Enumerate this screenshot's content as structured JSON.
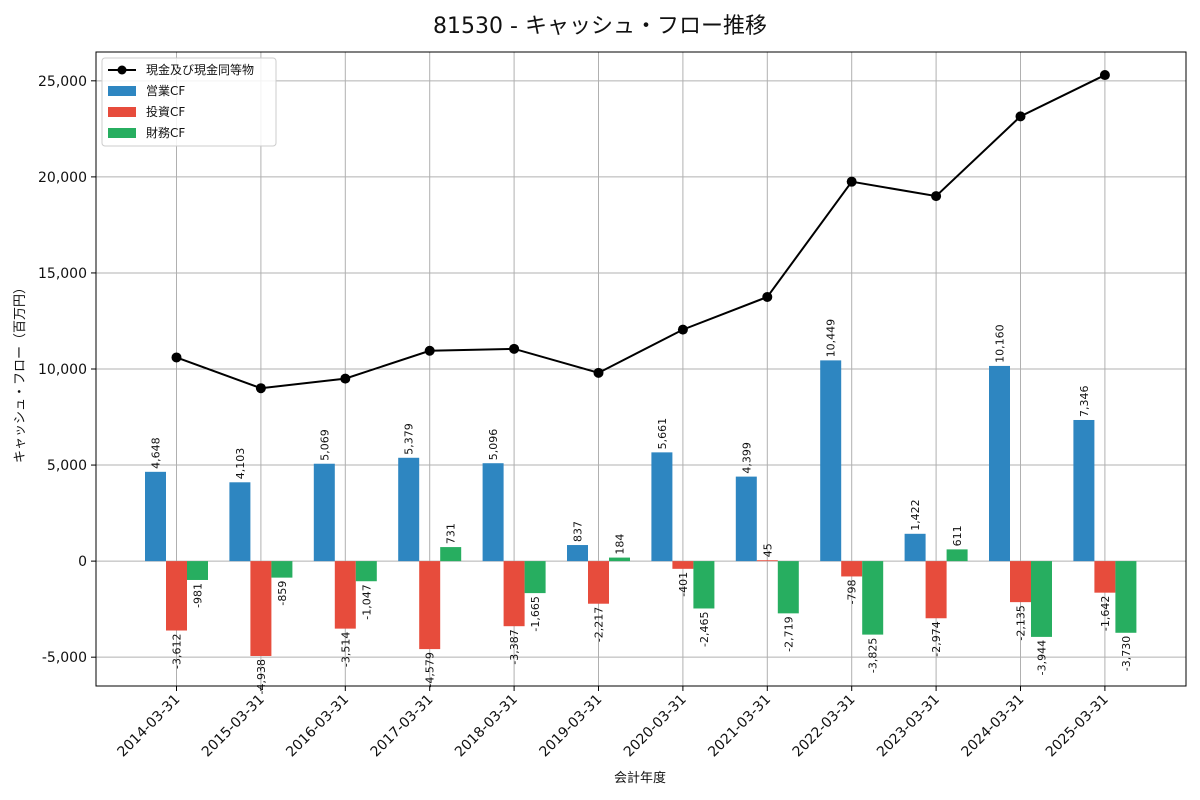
{
  "chart_data": {
    "type": "bar",
    "title": "81530 - キャッシュ・フロー推移",
    "xlabel": "会計年度",
    "ylabel": "キャッシュ・フロー（百万円）",
    "ylim": [
      -6500,
      26500
    ],
    "yticks": [
      -5000,
      0,
      5000,
      10000,
      15000,
      20000,
      25000
    ],
    "ytick_labels": [
      "-5,000",
      "0",
      "5,000",
      "10,000",
      "15,000",
      "20,000",
      "25,000"
    ],
    "grid": true,
    "legend_position": "top-left",
    "categories": [
      "2014-03-31",
      "2015-03-31",
      "2016-03-31",
      "2017-03-31",
      "2018-03-31",
      "2019-03-31",
      "2020-03-31",
      "2021-03-31",
      "2022-03-31",
      "2023-03-31",
      "2024-03-31",
      "2025-03-31"
    ],
    "series": [
      {
        "name": "営業CF",
        "kind": "bar",
        "color": "#2e86c1",
        "values": [
          4648,
          4103,
          5069,
          5379,
          5096,
          837,
          5661,
          4399,
          10449,
          1422,
          10160,
          7346
        ],
        "labels": [
          "4,648",
          "4,103",
          "5,069",
          "5,379",
          "5,096",
          "837",
          "5,661",
          "4,399",
          "10,449",
          "1,422",
          "10,160",
          "7,346"
        ]
      },
      {
        "name": "投資CF",
        "kind": "bar",
        "color": "#e74c3c",
        "values": [
          -3612,
          -4938,
          -3514,
          -4579,
          -3387,
          -2217,
          -401,
          45,
          -798,
          -2974,
          -2135,
          -1642
        ],
        "labels": [
          "-3,612",
          "-4,938",
          "-3,514",
          "-4,579",
          "-3,387",
          "-2,217",
          "-401",
          "45",
          "-798",
          "-2,974",
          "-2,135",
          "-1,642"
        ]
      },
      {
        "name": "財務CF",
        "kind": "bar",
        "color": "#27ae60",
        "values": [
          -981,
          -859,
          -1047,
          731,
          -1665,
          184,
          -2465,
          -2719,
          -3825,
          611,
          -3944,
          -3730
        ],
        "labels": [
          "-981",
          "-859",
          "-1,047",
          "731",
          "-1,665",
          "184",
          "-2,465",
          "-2,719",
          "-3,825",
          "611",
          "-3,944",
          "-3,730"
        ]
      },
      {
        "name": "現金及び現金同等物",
        "kind": "line",
        "color": "#000000",
        "values": [
          10600,
          9000,
          9500,
          10950,
          11050,
          9800,
          12050,
          13750,
          19750,
          19000,
          23150,
          25300
        ]
      }
    ]
  }
}
